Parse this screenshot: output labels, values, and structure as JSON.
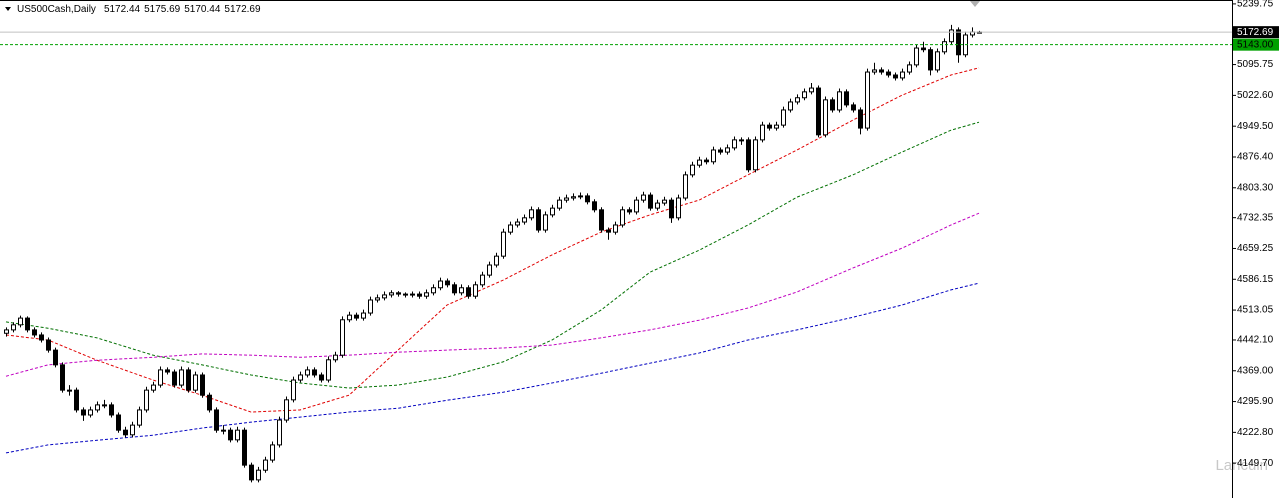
{
  "chart_data": {
    "type": "candlestick",
    "title": "US500Cash,Daily",
    "watermark": "Lancuin",
    "colors": {
      "up": "#ffffff",
      "down": "#000000",
      "outline": "#000000",
      "bid_line": "#c0c0c0"
    },
    "ylim": [
      4067,
      5249
    ],
    "yticks": [
      5239.75,
      5095.75,
      {
        "value": 5022.6,
        "label": "5022.60"
      },
      {
        "value": 4949.5,
        "label": "4949.50"
      },
      {
        "value": 4876.4,
        "label": "4876.40"
      },
      {
        "value": 4803.3,
        "label": "4803.30"
      },
      4732.35,
      4659.25,
      4586.15,
      4513.05,
      {
        "value": 4442.1,
        "label": "4442.10"
      },
      {
        "value": 4369,
        "label": "4369.00"
      },
      {
        "value": 4295.9,
        "label": "4295.90"
      },
      {
        "value": 4222.8,
        "label": "4222.80"
      },
      {
        "value": 4149.7,
        "label": "4149.70"
      }
    ],
    "price_lines": [
      {
        "value": 5143,
        "label": "5143.00",
        "color": "#00a000"
      }
    ],
    "candles": [
      [
        4458,
        4472,
        4450,
        4466
      ],
      [
        4466,
        4484,
        4460,
        4478
      ],
      [
        4478,
        4500,
        4472,
        4494
      ],
      [
        4494,
        4498,
        4460,
        4466
      ],
      [
        4466,
        4472,
        4448,
        4454
      ],
      [
        4454,
        4460,
        4436,
        4442
      ],
      [
        4442,
        4448,
        4412,
        4418
      ],
      [
        4418,
        4424,
        4377,
        4383
      ],
      [
        4383,
        4389,
        4317,
        4323
      ],
      [
        4323,
        4335,
        4310,
        4323
      ],
      [
        4323,
        4329,
        4270,
        4276
      ],
      [
        4276,
        4282,
        4250,
        4264
      ],
      [
        4264,
        4284,
        4258,
        4276
      ],
      [
        4276,
        4296,
        4270,
        4288
      ],
      [
        4288,
        4300,
        4280,
        4288
      ],
      [
        4288,
        4294,
        4258,
        4264
      ],
      [
        4264,
        4270,
        4222,
        4228
      ],
      [
        4228,
        4236,
        4211,
        4217
      ],
      [
        4217,
        4248,
        4211,
        4240
      ],
      [
        4240,
        4284,
        4234,
        4276
      ],
      [
        4276,
        4331,
        4270,
        4323
      ],
      [
        4323,
        4343,
        4317,
        4335
      ],
      [
        4335,
        4379,
        4329,
        4371
      ],
      [
        4371,
        4377,
        4360,
        4366
      ],
      [
        4366,
        4372,
        4329,
        4335
      ],
      [
        4335,
        4379,
        4329,
        4371
      ],
      [
        4371,
        4377,
        4317,
        4323
      ],
      [
        4323,
        4367,
        4317,
        4359
      ],
      [
        4359,
        4365,
        4305,
        4311
      ],
      [
        4311,
        4317,
        4270,
        4276
      ],
      [
        4276,
        4282,
        4222,
        4228
      ],
      [
        4228,
        4240,
        4218,
        4228
      ],
      [
        4228,
        4234,
        4199,
        4205
      ],
      [
        4205,
        4236,
        4199,
        4228
      ],
      [
        4228,
        4234,
        4139,
        4145
      ],
      [
        4145,
        4151,
        4104,
        4110
      ],
      [
        4110,
        4141,
        4104,
        4133
      ],
      [
        4133,
        4165,
        4127,
        4157
      ],
      [
        4157,
        4201,
        4151,
        4193
      ],
      [
        4193,
        4260,
        4187,
        4252
      ],
      [
        4252,
        4308,
        4246,
        4300
      ],
      [
        4300,
        4355,
        4294,
        4347
      ],
      [
        4347,
        4367,
        4341,
        4359
      ],
      [
        4359,
        4379,
        4353,
        4371
      ],
      [
        4371,
        4377,
        4353,
        4359
      ],
      [
        4359,
        4365,
        4341,
        4347
      ],
      [
        4347,
        4403,
        4341,
        4395
      ],
      [
        4395,
        4414,
        4389,
        4406
      ],
      [
        4406,
        4498,
        4400,
        4490
      ],
      [
        4490,
        4509,
        4484,
        4501
      ],
      [
        4501,
        4507,
        4488,
        4494
      ],
      [
        4494,
        4514,
        4488,
        4506
      ],
      [
        4506,
        4545,
        4500,
        4537
      ],
      [
        4537,
        4550,
        4531,
        4542
      ],
      [
        4542,
        4557,
        4536,
        4549
      ],
      [
        4549,
        4560,
        4543,
        4554
      ],
      [
        4554,
        4558,
        4545,
        4551
      ],
      [
        4551,
        4555,
        4543,
        4549
      ],
      [
        4549,
        4557,
        4543,
        4551
      ],
      [
        4551,
        4557,
        4540,
        4546
      ],
      [
        4546,
        4562,
        4540,
        4554
      ],
      [
        4554,
        4574,
        4548,
        4566
      ],
      [
        4566,
        4590,
        4560,
        4582
      ],
      [
        4582,
        4588,
        4567,
        4573
      ],
      [
        4573,
        4579,
        4548,
        4554
      ],
      [
        4554,
        4574,
        4548,
        4566
      ],
      [
        4566,
        4572,
        4540,
        4546
      ],
      [
        4546,
        4581,
        4540,
        4573
      ],
      [
        4573,
        4604,
        4567,
        4596
      ],
      [
        4596,
        4628,
        4590,
        4620
      ],
      [
        4620,
        4649,
        4614,
        4641
      ],
      [
        4641,
        4706,
        4635,
        4698
      ],
      [
        4698,
        4723,
        4692,
        4715
      ],
      [
        4715,
        4730,
        4709,
        4722
      ],
      [
        4722,
        4740,
        4716,
        4732
      ],
      [
        4732,
        4759,
        4726,
        4751
      ],
      [
        4751,
        4757,
        4697,
        4703
      ],
      [
        4703,
        4747,
        4697,
        4739
      ],
      [
        4739,
        4763,
        4733,
        4755
      ],
      [
        4755,
        4782,
        4749,
        4774
      ],
      [
        4774,
        4787,
        4768,
        4779
      ],
      [
        4779,
        4790,
        4773,
        4782
      ],
      [
        4782,
        4792,
        4776,
        4784
      ],
      [
        4784,
        4790,
        4764,
        4770
      ],
      [
        4770,
        4776,
        4745,
        4751
      ],
      [
        4751,
        4757,
        4697,
        4703
      ],
      [
        4703,
        4709,
        4680,
        4698
      ],
      [
        4698,
        4723,
        4692,
        4715
      ],
      [
        4715,
        4759,
        4709,
        4751
      ],
      [
        4751,
        4757,
        4740,
        4746
      ],
      [
        4746,
        4782,
        4740,
        4774
      ],
      [
        4774,
        4794,
        4768,
        4786
      ],
      [
        4786,
        4792,
        4749,
        4755
      ],
      [
        4755,
        4775,
        4749,
        4767
      ],
      [
        4767,
        4782,
        4761,
        4774
      ],
      [
        4774,
        4780,
        4720,
        4732
      ],
      [
        4732,
        4787,
        4726,
        4779
      ],
      [
        4779,
        4842,
        4773,
        4834
      ],
      [
        4834,
        4865,
        4828,
        4857
      ],
      [
        4857,
        4877,
        4851,
        4869
      ],
      [
        4869,
        4875,
        4859,
        4865
      ],
      [
        4865,
        4901,
        4859,
        4893
      ],
      [
        4893,
        4899,
        4882,
        4888
      ],
      [
        4888,
        4906,
        4882,
        4898
      ],
      [
        4898,
        4925,
        4892,
        4917
      ],
      [
        4917,
        4923,
        4905,
        4917
      ],
      [
        4917,
        4923,
        4840,
        4846
      ],
      [
        4846,
        4925,
        4840,
        4917
      ],
      [
        4917,
        4960,
        4911,
        4952
      ],
      [
        4952,
        4958,
        4939,
        4945
      ],
      [
        4945,
        4960,
        4939,
        4952
      ],
      [
        4952,
        4996,
        4946,
        4988
      ],
      [
        4988,
        5015,
        4982,
        5007
      ],
      [
        5007,
        5025,
        5001,
        5017
      ],
      [
        5017,
        5039,
        5011,
        5031
      ],
      [
        5031,
        5052,
        5025,
        5040
      ],
      [
        5040,
        5046,
        4923,
        4929
      ],
      [
        4929,
        5020,
        4923,
        5012
      ],
      [
        5012,
        5018,
        4982,
        4988
      ],
      [
        4988,
        5039,
        4982,
        5031
      ],
      [
        5031,
        5037,
        4994,
        5000
      ],
      [
        5000,
        5006,
        4982,
        4988
      ],
      [
        4988,
        4994,
        4930,
        4945
      ],
      [
        4945,
        5086,
        4939,
        5078
      ],
      [
        5078,
        5100,
        5072,
        5083
      ],
      [
        5083,
        5089,
        5072,
        5078
      ],
      [
        5078,
        5084,
        5065,
        5071
      ],
      [
        5071,
        5077,
        5058,
        5064
      ],
      [
        5064,
        5086,
        5058,
        5078
      ],
      [
        5078,
        5103,
        5072,
        5095
      ],
      [
        5095,
        5143,
        5089,
        5135
      ],
      [
        5135,
        5150,
        5125,
        5131
      ],
      [
        5131,
        5137,
        5070,
        5083
      ],
      [
        5083,
        5134,
        5077,
        5126
      ],
      [
        5126,
        5158,
        5120,
        5150
      ],
      [
        5150,
        5190,
        5144,
        5178
      ],
      [
        5178,
        5184,
        5100,
        5119
      ],
      [
        5119,
        5174,
        5113,
        5166
      ],
      [
        5166,
        5184,
        5160,
        5173
      ],
      [
        5172.44,
        5175.69,
        5170.44,
        5172.69
      ]
    ],
    "moving_averages": [
      {
        "color": "#e00000",
        "x": [
          0,
          6,
          13,
          21,
          28,
          35,
          42,
          49,
          56,
          63,
          71,
          78,
          85,
          92,
          99,
          106,
          113,
          121,
          128,
          135,
          139
        ],
        "values": [
          4454,
          4442,
          4394,
          4347,
          4311,
          4271,
          4276,
          4311,
          4418,
          4525,
          4584,
          4644,
          4698,
          4739,
          4774,
          4834,
          4893,
          4964,
          5023,
          5071,
          5088
        ]
      },
      {
        "color": "#007000",
        "x": [
          0,
          6,
          13,
          21,
          28,
          35,
          42,
          49,
          56,
          63,
          71,
          78,
          85,
          92,
          99,
          106,
          113,
          121,
          128,
          135,
          139
        ],
        "values": [
          4485,
          4470,
          4447,
          4406,
          4383,
          4359,
          4340,
          4328,
          4335,
          4354,
          4390,
          4442,
          4513,
          4603,
          4655,
          4715,
          4781,
          4834,
          4888,
          4940,
          4959
        ]
      },
      {
        "color": "#c000c0",
        "x": [
          0,
          6,
          13,
          21,
          28,
          35,
          42,
          49,
          56,
          63,
          71,
          78,
          85,
          92,
          99,
          106,
          113,
          121,
          128,
          135,
          139
        ],
        "values": [
          4356,
          4383,
          4394,
          4401,
          4409,
          4406,
          4401,
          4406,
          4413,
          4418,
          4423,
          4430,
          4447,
          4466,
          4489,
          4518,
          4556,
          4613,
          4660,
          4715,
          4743
        ]
      },
      {
        "color": "#0000c0",
        "x": [
          0,
          6,
          13,
          21,
          28,
          35,
          42,
          49,
          56,
          63,
          71,
          78,
          85,
          92,
          99,
          106,
          113,
          121,
          128,
          135,
          139
        ],
        "values": [
          4174,
          4193,
          4204,
          4216,
          4233,
          4247,
          4259,
          4271,
          4280,
          4299,
          4318,
          4340,
          4363,
          4387,
          4411,
          4442,
          4466,
          4496,
          4525,
          4561,
          4577
        ]
      }
    ]
  }
}
